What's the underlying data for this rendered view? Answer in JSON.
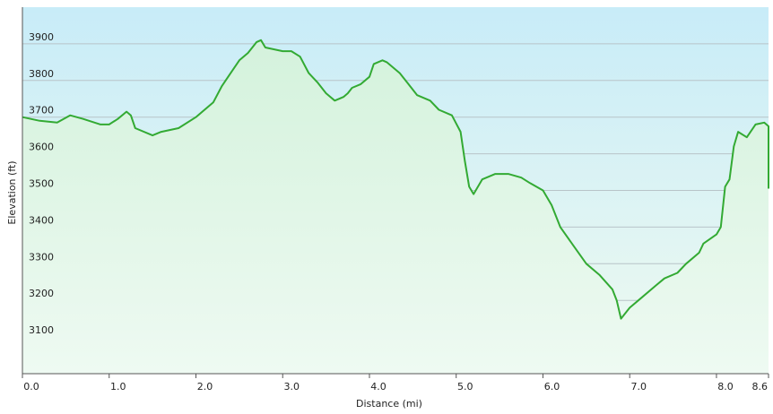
{
  "chart_data": {
    "type": "line",
    "xlabel": "Distance (mi)",
    "ylabel": "Elevation (ft)",
    "xlim": [
      0,
      8.6
    ],
    "xticks": [
      {
        "value": 0,
        "label": "0.0"
      },
      {
        "value": 1,
        "label": "1.0"
      },
      {
        "value": 2,
        "label": "2.0"
      },
      {
        "value": 3,
        "label": "3.0"
      },
      {
        "value": 4,
        "label": "4.0"
      },
      {
        "value": 5,
        "label": "5.0"
      },
      {
        "value": 6,
        "label": "6.0"
      },
      {
        "value": 7,
        "label": "7.0"
      },
      {
        "value": 8,
        "label": "8.0"
      },
      8.6
    ],
    "ylim": [
      3000,
      4000
    ],
    "yticks": [
      3100,
      3200,
      3300,
      3400,
      3500,
      3600,
      3700,
      3800,
      3900
    ],
    "grid": true,
    "color": "#33aa33",
    "x": [
      0,
      0.2,
      0.4,
      0.55,
      0.7,
      0.9,
      1.0,
      1.1,
      1.2,
      1.25,
      1.3,
      1.5,
      1.6,
      1.8,
      2.0,
      2.2,
      2.3,
      2.4,
      2.5,
      2.6,
      2.7,
      2.75,
      2.8,
      3.0,
      3.1,
      3.2,
      3.3,
      3.4,
      3.5,
      3.6,
      3.7,
      3.75,
      3.8,
      3.9,
      4.0,
      4.05,
      4.15,
      4.2,
      4.35,
      4.45,
      4.55,
      4.7,
      4.8,
      4.95,
      5.05,
      5.1,
      5.15,
      5.2,
      5.3,
      5.45,
      5.6,
      5.75,
      5.85,
      6.0,
      6.1,
      6.2,
      6.35,
      6.5,
      6.65,
      6.8,
      6.85,
      6.9,
      7.0,
      7.1,
      7.3,
      7.4,
      7.55,
      7.65,
      7.8,
      7.85,
      8.0,
      8.05,
      8.1,
      8.15,
      8.2,
      8.25,
      8.35,
      8.45,
      8.55,
      8.6,
      8.6
    ],
    "values": [
      3700,
      3690,
      3685,
      3705,
      3695,
      3680,
      3680,
      3695,
      3715,
      3705,
      3670,
      3650,
      3660,
      3670,
      3700,
      3740,
      3785,
      3820,
      3855,
      3875,
      3905,
      3910,
      3890,
      3880,
      3880,
      3865,
      3820,
      3795,
      3765,
      3745,
      3755,
      3765,
      3780,
      3790,
      3810,
      3845,
      3855,
      3850,
      3820,
      3790,
      3760,
      3745,
      3720,
      3705,
      3660,
      3580,
      3510,
      3490,
      3530,
      3545,
      3545,
      3535,
      3520,
      3500,
      3460,
      3400,
      3350,
      3300,
      3270,
      3230,
      3200,
      3150,
      3180,
      3200,
      3240,
      3260,
      3275,
      3300,
      3330,
      3355,
      3380,
      3400,
      3510,
      3530,
      3620,
      3660,
      3645,
      3680,
      3685,
      3675,
      3505
    ]
  }
}
